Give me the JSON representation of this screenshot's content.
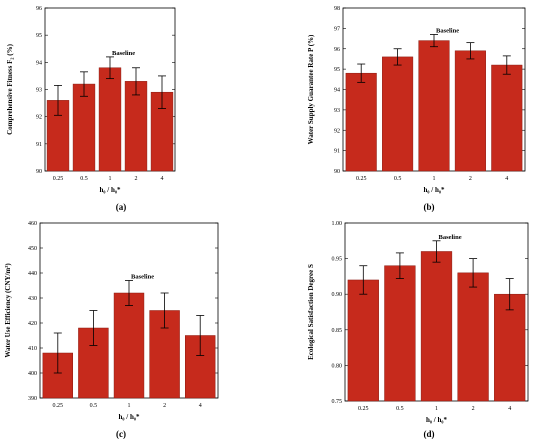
{
  "chart_data": [
    {
      "type": "bar",
      "panel_label": "(a)",
      "categories": [
        "0.25",
        "0.5",
        "1",
        "2",
        "4"
      ],
      "values": [
        92.6,
        93.2,
        93.8,
        93.3,
        92.9
      ],
      "errors": [
        0.55,
        0.45,
        0.4,
        0.5,
        0.6
      ],
      "ylim": [
        90,
        96
      ],
      "yticks": [
        "90",
        "91",
        "92",
        "93",
        "94",
        "95",
        "96"
      ],
      "ylabel": "Comprehensive Fitness F₂ (%)",
      "xlabel": "h₀ / h₀*",
      "annotation": {
        "text": "Baseline",
        "category_index": 2
      },
      "bar_color": "#c62a1c"
    },
    {
      "type": "bar",
      "panel_label": "(b)",
      "categories": [
        "0.25",
        "0.5",
        "1",
        "2",
        "4"
      ],
      "values": [
        94.8,
        95.6,
        96.4,
        95.9,
        95.2
      ],
      "errors": [
        0.45,
        0.4,
        0.3,
        0.4,
        0.45
      ],
      "ylim": [
        90,
        98
      ],
      "yticks": [
        "90",
        "91",
        "92",
        "93",
        "94",
        "95",
        "96",
        "97",
        "98"
      ],
      "ylabel": "Water Supply Guarantee Rate P (%)",
      "xlabel": "h₀ / h₀*",
      "annotation": {
        "text": "Baseline",
        "category_index": 2
      },
      "bar_color": "#c62a1c"
    },
    {
      "type": "bar",
      "panel_label": "(c)",
      "categories": [
        "0.25",
        "0.5",
        "1",
        "2",
        "4"
      ],
      "values": [
        408,
        418,
        432,
        425,
        415
      ],
      "errors": [
        8,
        7,
        5,
        7,
        8
      ],
      "ylim": [
        390,
        460
      ],
      "yticks": [
        "390",
        "400",
        "410",
        "420",
        "430",
        "440",
        "450",
        "460"
      ],
      "ylabel": "Water Use Efficiency (CNY/m³)",
      "xlabel": "h₀ / h₀*",
      "annotation": {
        "text": "Baseline",
        "category_index": 2
      },
      "bar_color": "#c62a1c"
    },
    {
      "type": "bar",
      "panel_label": "(d)",
      "categories": [
        "0.25",
        "0.5",
        "1",
        "2",
        "4"
      ],
      "values": [
        0.92,
        0.94,
        0.96,
        0.93,
        0.9
      ],
      "errors": [
        0.02,
        0.018,
        0.015,
        0.02,
        0.022
      ],
      "ylim": [
        0.75,
        1.0
      ],
      "yticks": [
        "0.75",
        "0.80",
        "0.85",
        "0.90",
        "0.95",
        "1.00"
      ],
      "ylabel": "Ecological Satisfaction Degree S",
      "xlabel": "h₀ / h₀*",
      "annotation": {
        "text": "Baseline",
        "category_index": 2
      },
      "bar_color": "#c62a1c"
    }
  ]
}
